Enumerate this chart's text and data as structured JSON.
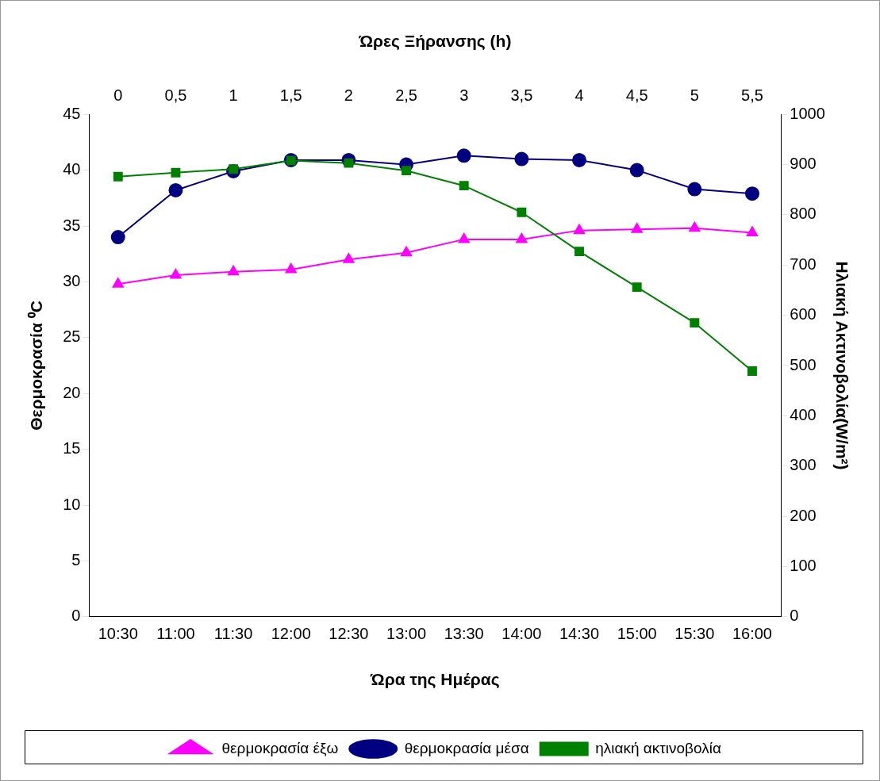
{
  "chart_data": {
    "type": "line",
    "xlabel": "Ώρα της Ημέρας",
    "ylabel": "Θερμοκρασία ⁰C",
    "y2label": "Ηλιακή Ακτινοβολία(W/m²)",
    "x2label": "Ώρες Ξήρανσης (h)",
    "categories": [
      "10:30",
      "11:00",
      "11:30",
      "12:00",
      "12:30",
      "13:00",
      "13:30",
      "14:00",
      "14:30",
      "15:00",
      "15:30",
      "16:00"
    ],
    "series": [
      {
        "name": "θερμοκρασία έξω",
        "color": "#ff00ff",
        "marker": "triangle",
        "values": [
          29.8,
          30.6,
          30.9,
          31.1,
          32.0,
          32.6,
          33.8,
          33.8,
          34.6,
          34.7,
          34.8,
          34.4
        ]
      },
      {
        "name": "θερμοκρασία μέσα",
        "color": "#000080",
        "marker": "circle",
        "values": [
          34.0,
          38.2,
          39.9,
          40.9,
          40.9,
          40.5,
          41.3,
          41.0,
          40.9,
          40.0,
          38.3,
          37.9
        ]
      },
      {
        "name": "ηλιακή ακτινοβολία",
        "color": "#008000",
        "marker": "square",
        "axis": "y2",
        "values": [
          876,
          884,
          891,
          908,
          903,
          888,
          858,
          805,
          727,
          656,
          585,
          489
        ]
      }
    ],
    "ylim": [
      0,
      45
    ],
    "yticks": [
      0,
      5,
      10,
      15,
      20,
      25,
      30,
      35,
      40,
      45
    ],
    "y2lim": [
      0,
      1000
    ],
    "y2ticks": [
      0,
      100,
      200,
      300,
      400,
      500,
      600,
      700,
      800,
      900,
      1000
    ],
    "x2lim": [
      -0.25,
      5.75
    ],
    "x2ticks": [
      0,
      {
        "value": 0.5,
        "label": "0,5"
      },
      1,
      {
        "value": 1.5,
        "label": "1,5"
      },
      2,
      {
        "value": 2.5,
        "label": "2,5"
      },
      3,
      {
        "value": 3.5,
        "label": "3,5"
      },
      4,
      {
        "value": 4.5,
        "label": "4,5"
      },
      5,
      {
        "value": 5.5,
        "label": "5,5"
      }
    ],
    "grid": false,
    "legend": "bottom",
    "line_style": "solid"
  }
}
